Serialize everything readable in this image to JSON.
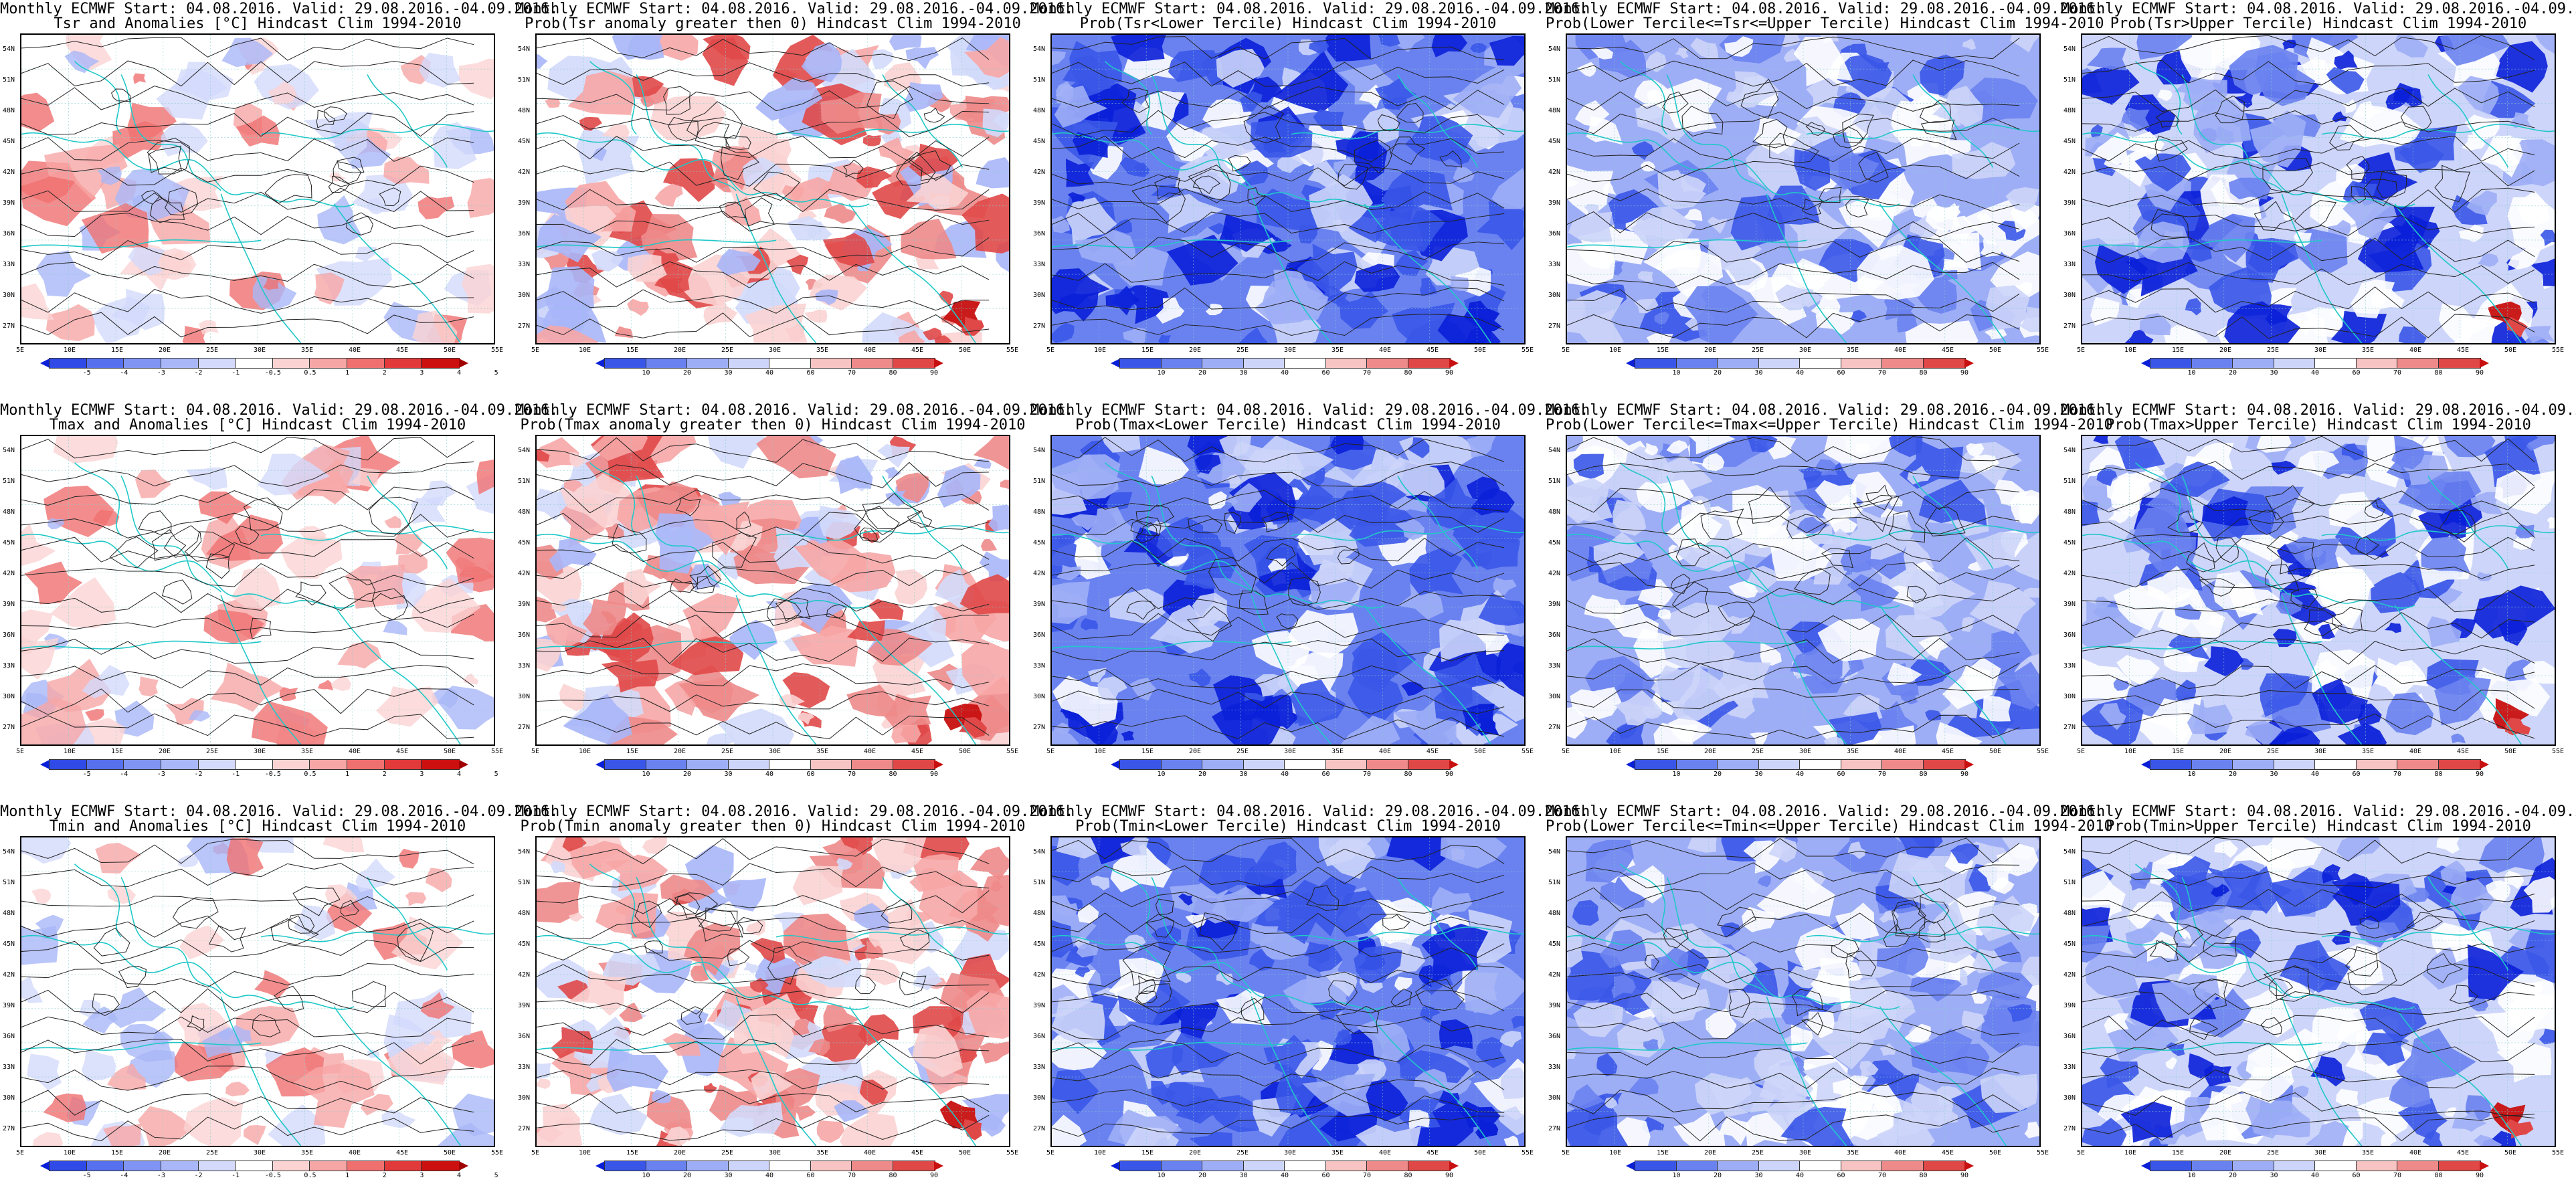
{
  "header": {
    "title": "Monthly ECMWF Start: 04.08.2016. Valid: 29.08.2016.-04.09.2016."
  },
  "lat_ticks": [
    "54N",
    "51N",
    "48N",
    "45N",
    "42N",
    "39N",
    "36N",
    "33N",
    "30N",
    "27N"
  ],
  "lon_ticks": [
    "5E",
    "10E",
    "15E",
    "20E",
    "25E",
    "30E",
    "35E",
    "40E",
    "45E",
    "50E",
    "55E"
  ],
  "colorbars": {
    "anom": {
      "labels": [
        "-5",
        "-4",
        "-3",
        "-2",
        "-1",
        "-0.5",
        "0.5",
        "1",
        "2",
        "3",
        "4",
        "5"
      ],
      "colors": [
        "#0a1fd8",
        "#2f4ae6",
        "#5670ee",
        "#8095f3",
        "#a9b6f8",
        "#d3dafb",
        "#ffffff",
        "#fbd3d3",
        "#f7a6a6",
        "#f07070",
        "#e23a3a",
        "#cc1010",
        "#a00000"
      ]
    },
    "prob": {
      "labels": [
        "10",
        "20",
        "30",
        "40",
        "60",
        "70",
        "80",
        "90"
      ],
      "colors": [
        "#0a1fd8",
        "#3a56e8",
        "#6a82f0",
        "#9eaef6",
        "#cdd5fa",
        "#ffffff",
        "#f7c3c3",
        "#ee8a8a",
        "#e04848",
        "#c81010"
      ]
    }
  },
  "panels": [
    {
      "line2": "Tsr and Anomalies [°C] Hindcast Clim 1994-2010",
      "kind": "anom",
      "bar": "anom"
    },
    {
      "line2": "Prob(Tsr anomaly greater then 0) Hindcast Clim 1994-2010",
      "kind": "pos",
      "bar": "prob"
    },
    {
      "line2": "Prob(Tsr<Lower Tercile) Hindcast Clim 1994-2010",
      "kind": "blue",
      "bar": "prob"
    },
    {
      "line2": "Prob(Lower Tercile<=Tsr<=Upper Tercile) Hindcast Clim 1994-2010",
      "kind": "mid",
      "bar": "prob"
    },
    {
      "line2": "Prob(Tsr>Upper Tercile) Hindcast Clim 1994-2010",
      "kind": "upper",
      "bar": "prob"
    },
    {
      "line2": "Tmax and Anomalies [°C] Hindcast Clim 1994-2010",
      "kind": "anom",
      "bar": "anom"
    },
    {
      "line2": "Prob(Tmax anomaly greater then 0) Hindcast Clim 1994-2010",
      "kind": "pos",
      "bar": "prob"
    },
    {
      "line2": "Prob(Tmax<Lower Tercile) Hindcast Clim 1994-2010",
      "kind": "blue",
      "bar": "prob"
    },
    {
      "line2": "Prob(Lower Tercile<=Tmax<=Upper Tercile) Hindcast Clim 1994-2010",
      "kind": "mid",
      "bar": "prob"
    },
    {
      "line2": "Prob(Tmax>Upper Tercile) Hindcast Clim 1994-2010",
      "kind": "upper",
      "bar": "prob"
    },
    {
      "line2": "Tmin and Anomalies [°C] Hindcast Clim 1994-2010",
      "kind": "anom",
      "bar": "anom"
    },
    {
      "line2": "Prob(Tmin anomaly greater then 0) Hindcast Clim 1994-2010",
      "kind": "pos",
      "bar": "prob"
    },
    {
      "line2": "Prob(Tmin<Lower Tercile) Hindcast Clim 1994-2010",
      "kind": "blue",
      "bar": "prob"
    },
    {
      "line2": "Prob(Lower Tercile<=Tmin<=Upper Tercile) Hindcast Clim 1994-2010",
      "kind": "mid",
      "bar": "prob"
    },
    {
      "line2": "Prob(Tmin>Upper Tercile) Hindcast Clim 1994-2010",
      "kind": "upper",
      "bar": "prob"
    }
  ]
}
